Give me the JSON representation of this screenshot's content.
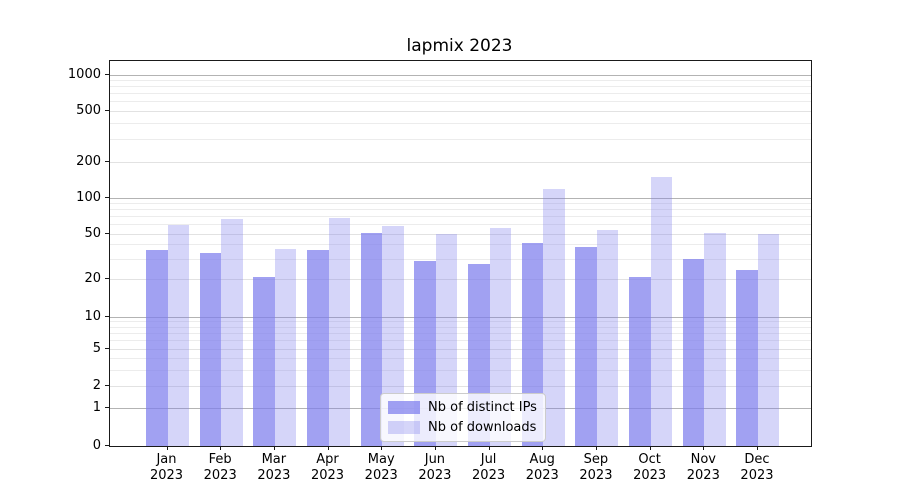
{
  "chart_data": {
    "type": "bar",
    "title": "lapmix 2023",
    "categories": [
      "Jan 2023",
      "Feb 2023",
      "Mar 2023",
      "Apr 2023",
      "May 2023",
      "Jun 2023",
      "Jul 2023",
      "Aug 2023",
      "Sep 2023",
      "Oct 2023",
      "Nov 2023",
      "Dec 2023"
    ],
    "series": [
      {
        "name": "Nb of distinct IPs",
        "values": [
          36,
          34,
          21,
          36,
          51,
          29,
          27,
          42,
          38,
          21,
          30,
          24
        ],
        "color": "#7d7ded",
        "alpha": 0.72
      },
      {
        "name": "Nb of downloads",
        "values": [
          60,
          67,
          37,
          68,
          58,
          50,
          56,
          120,
          54,
          150,
          51,
          50
        ],
        "color": "#7d7ded",
        "alpha": 0.32
      }
    ],
    "xlabel": "",
    "ylabel": "",
    "yscale": "symlog",
    "y_ticks": [
      0,
      1,
      2,
      5,
      10,
      20,
      50,
      100,
      200,
      500,
      1000
    ],
    "ylim": [
      0,
      1000
    ],
    "grid": true,
    "legend_position": "lower center",
    "background_color": "#ffffff",
    "grid_major_color": "#b3b3b3",
    "grid_minor_color": "#ececec"
  }
}
